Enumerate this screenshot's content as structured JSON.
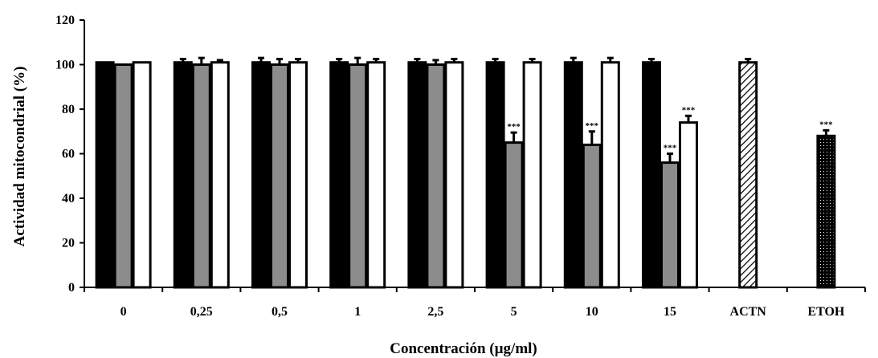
{
  "chart_data": {
    "type": "bar",
    "title": "",
    "xlabel": "Concentración (µg/ml)",
    "ylabel": "Actividad mitocondrial (%)",
    "ylim": [
      0,
      120
    ],
    "yticks": [
      "0",
      "20",
      "40",
      "60",
      "80",
      "100",
      "120"
    ],
    "categories": [
      "0",
      "0,25",
      "0,5",
      "1",
      "2,5",
      "5",
      "10",
      "15",
      "ACTN",
      "ETOH"
    ],
    "grid": false,
    "legend": "none",
    "series": [
      {
        "fill": "#000000",
        "values": [
          101,
          101,
          101,
          101,
          101,
          101,
          101,
          101,
          null,
          null
        ],
        "errors": [
          0,
          1.5,
          2,
          1.5,
          1.5,
          1.5,
          2,
          1.5,
          null,
          null
        ],
        "annotations": [
          "",
          "",
          "",
          "",
          "",
          "",
          "",
          "",
          "",
          ""
        ]
      },
      {
        "fill": "#8c8c8c",
        "values": [
          100,
          100,
          100,
          100,
          100,
          65,
          64,
          56,
          null,
          null
        ],
        "errors": [
          0,
          3,
          2.5,
          3,
          2,
          4.5,
          6,
          4,
          null,
          null
        ],
        "annotations": [
          "",
          "",
          "",
          "",
          "",
          "***",
          "***",
          "***",
          "",
          ""
        ]
      },
      {
        "fill": "#ffffff",
        "values": [
          101,
          101,
          101,
          101,
          101,
          101,
          101,
          74,
          null,
          null
        ],
        "errors": [
          0,
          1,
          1.5,
          1.5,
          1.5,
          1.5,
          2,
          3,
          null,
          null
        ],
        "annotations": [
          "",
          "",
          "",
          "",
          "",
          "",
          "",
          "***",
          "",
          ""
        ]
      },
      {
        "fill": "hatch",
        "values": [
          null,
          null,
          null,
          null,
          null,
          null,
          null,
          null,
          101,
          null
        ],
        "errors": [
          null,
          null,
          null,
          null,
          null,
          null,
          null,
          null,
          1.5,
          null
        ],
        "annotations": [
          "",
          "",
          "",
          "",
          "",
          "",
          "",
          "",
          "",
          ""
        ]
      },
      {
        "fill": "dots",
        "values": [
          null,
          null,
          null,
          null,
          null,
          null,
          null,
          null,
          null,
          68
        ],
        "errors": [
          null,
          null,
          null,
          null,
          null,
          null,
          null,
          null,
          null,
          2.5
        ],
        "annotations": [
          "",
          "",
          "",
          "",
          "",
          "",
          "",
          "",
          "",
          "***"
        ]
      }
    ]
  }
}
